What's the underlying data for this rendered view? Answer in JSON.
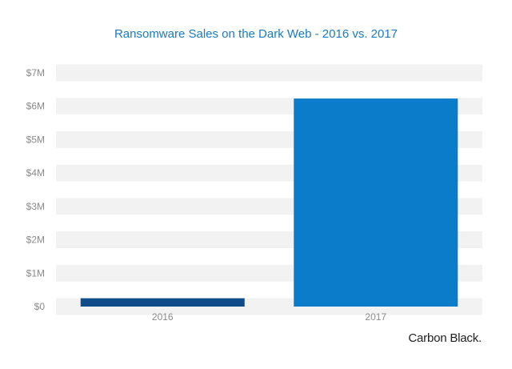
{
  "chart_data": {
    "type": "bar",
    "title": "Ransomware Sales on the Dark Web - 2016 vs. 2017",
    "categories": [
      "2016",
      "2017"
    ],
    "values": [
      249287,
      6230000
    ],
    "bar_colors": [
      "#0f4d8a",
      "#0a7cc9"
    ],
    "ylim": [
      0,
      7000000
    ],
    "yticks": [
      0,
      1000000,
      2000000,
      3000000,
      4000000,
      5000000,
      6000000,
      7000000
    ],
    "ytick_labels": [
      "$0",
      "$1M",
      "$2M",
      "$3M",
      "$4M",
      "$5M",
      "$6M",
      "$7M"
    ],
    "grid": "horizontal bands",
    "band_color": "#f2f2f2"
  },
  "brand": "Carbon Black."
}
